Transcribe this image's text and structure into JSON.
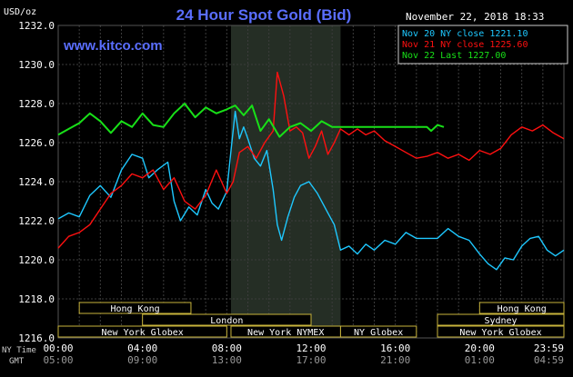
{
  "header": {
    "title": "24 Hour Spot Gold (Bid)",
    "units": "USD/oz",
    "date": "November 22, 2018 18:33",
    "watermark": "www.kitco.com"
  },
  "legend": [
    {
      "label": "Nov 20 NY close 1221.10",
      "color": "#1ec8ff"
    },
    {
      "label": "Nov 21 NY close 1225.60",
      "color": "#ff1010"
    },
    {
      "label": "Nov 22 Last 1227.00",
      "color": "#18e018"
    }
  ],
  "axis": {
    "row1_label": "NY Time",
    "row2_label": "GMT",
    "x_ticks_ny": [
      "00:00",
      "04:00",
      "08:00",
      "12:00",
      "16:00",
      "20:00",
      "23:59"
    ],
    "x_ticks_gmt": [
      "05:00",
      "09:00",
      "13:00",
      "17:00",
      "21:00",
      "01:00",
      "04:59"
    ],
    "y_ticks": [
      "1232.0",
      "1230.0",
      "1228.0",
      "1226.0",
      "1224.0",
      "1222.0",
      "1220.0",
      "1218.0",
      "1216.0"
    ]
  },
  "sessions": [
    {
      "label": "Hong Kong",
      "start": 1.0,
      "end": 6.3,
      "row": 0
    },
    {
      "label": "Hong Kong",
      "start": 20.0,
      "end": 24.0,
      "row": 0
    },
    {
      "label": "London",
      "start": 4.0,
      "end": 12.0,
      "row": 1
    },
    {
      "label": "Sydney",
      "start": 18.0,
      "end": 24.0,
      "row": 1
    },
    {
      "label": "New York Globex",
      "start": 0.0,
      "end": 8.0,
      "row": 2
    },
    {
      "label": "New York NYMEX",
      "start": 8.2,
      "end": 13.4,
      "row": 2
    },
    {
      "label": "NY Globex",
      "start": 13.4,
      "end": 17.0,
      "row": 2
    },
    {
      "label": "New York Globex",
      "start": 18.0,
      "end": 24.0,
      "row": 2
    }
  ],
  "chart_data": {
    "type": "line",
    "title": "24 Hour Spot Gold (Bid)",
    "ylabel": "USD/oz",
    "xlabel": "NY Time",
    "ylim": [
      1216,
      1232
    ],
    "xlim": [
      0,
      24
    ],
    "grid": true,
    "shaded_range": [
      8.2,
      13.4
    ],
    "series": [
      {
        "name": "Nov 20 NY close 1221.10",
        "color": "#1ec8ff",
        "points": [
          [
            0,
            1222.1
          ],
          [
            0.5,
            1222.4
          ],
          [
            1,
            1222.2
          ],
          [
            1.5,
            1223.3
          ],
          [
            2,
            1223.8
          ],
          [
            2.5,
            1223.2
          ],
          [
            3,
            1224.6
          ],
          [
            3.5,
            1225.4
          ],
          [
            4,
            1225.2
          ],
          [
            4.3,
            1224.2
          ],
          [
            4.7,
            1224.6
          ],
          [
            5.2,
            1225.0
          ],
          [
            5.5,
            1223.0
          ],
          [
            5.8,
            1222.0
          ],
          [
            6.2,
            1222.7
          ],
          [
            6.6,
            1222.3
          ],
          [
            7.0,
            1223.6
          ],
          [
            7.3,
            1222.9
          ],
          [
            7.6,
            1222.6
          ],
          [
            8.0,
            1223.5
          ],
          [
            8.2,
            1225.6
          ],
          [
            8.4,
            1227.6
          ],
          [
            8.6,
            1226.2
          ],
          [
            8.8,
            1226.8
          ],
          [
            9.0,
            1226.2
          ],
          [
            9.3,
            1225.2
          ],
          [
            9.6,
            1224.8
          ],
          [
            9.9,
            1225.6
          ],
          [
            10.2,
            1223.6
          ],
          [
            10.4,
            1221.8
          ],
          [
            10.6,
            1221.0
          ],
          [
            10.9,
            1222.2
          ],
          [
            11.2,
            1223.2
          ],
          [
            11.5,
            1223.8
          ],
          [
            11.9,
            1224.0
          ],
          [
            12.3,
            1223.4
          ],
          [
            12.8,
            1222.4
          ],
          [
            13.1,
            1221.8
          ],
          [
            13.4,
            1220.5
          ],
          [
            13.8,
            1220.7
          ],
          [
            14.2,
            1220.3
          ],
          [
            14.6,
            1220.8
          ],
          [
            15.0,
            1220.5
          ],
          [
            15.5,
            1221.0
          ],
          [
            16.0,
            1220.8
          ],
          [
            16.5,
            1221.4
          ],
          [
            17.0,
            1221.1
          ],
          [
            17.5,
            1221.1
          ],
          [
            18.0,
            1221.1
          ],
          [
            18.5,
            1221.6
          ],
          [
            19.0,
            1221.2
          ],
          [
            19.5,
            1221.0
          ],
          [
            20.0,
            1220.3
          ],
          [
            20.4,
            1219.8
          ],
          [
            20.8,
            1219.5
          ],
          [
            21.2,
            1220.1
          ],
          [
            21.6,
            1220.0
          ],
          [
            22.0,
            1220.7
          ],
          [
            22.4,
            1221.1
          ],
          [
            22.8,
            1221.2
          ],
          [
            23.2,
            1220.5
          ],
          [
            23.6,
            1220.2
          ],
          [
            24.0,
            1220.5
          ]
        ]
      },
      {
        "name": "Nov 21 NY close 1225.60",
        "color": "#ff1010",
        "points": [
          [
            0,
            1220.6
          ],
          [
            0.5,
            1221.2
          ],
          [
            1,
            1221.4
          ],
          [
            1.5,
            1221.8
          ],
          [
            2,
            1222.6
          ],
          [
            2.5,
            1223.4
          ],
          [
            3,
            1223.8
          ],
          [
            3.5,
            1224.4
          ],
          [
            4,
            1224.2
          ],
          [
            4.5,
            1224.6
          ],
          [
            5.0,
            1223.6
          ],
          [
            5.5,
            1224.2
          ],
          [
            6.0,
            1223.0
          ],
          [
            6.5,
            1222.6
          ],
          [
            7.0,
            1223.3
          ],
          [
            7.5,
            1224.6
          ],
          [
            8.0,
            1223.4
          ],
          [
            8.3,
            1224.0
          ],
          [
            8.6,
            1225.5
          ],
          [
            9.0,
            1225.8
          ],
          [
            9.4,
            1225.2
          ],
          [
            9.8,
            1226.0
          ],
          [
            10.2,
            1226.6
          ],
          [
            10.4,
            1229.6
          ],
          [
            10.7,
            1228.4
          ],
          [
            11.0,
            1226.6
          ],
          [
            11.3,
            1226.8
          ],
          [
            11.6,
            1226.5
          ],
          [
            11.9,
            1225.2
          ],
          [
            12.2,
            1225.8
          ],
          [
            12.5,
            1226.6
          ],
          [
            12.8,
            1225.4
          ],
          [
            13.1,
            1226.0
          ],
          [
            13.4,
            1226.7
          ],
          [
            13.8,
            1226.4
          ],
          [
            14.2,
            1226.7
          ],
          [
            14.6,
            1226.4
          ],
          [
            15.0,
            1226.6
          ],
          [
            15.5,
            1226.1
          ],
          [
            16.0,
            1225.8
          ],
          [
            16.5,
            1225.5
          ],
          [
            17.0,
            1225.2
          ],
          [
            17.5,
            1225.3
          ],
          [
            18.0,
            1225.5
          ],
          [
            18.5,
            1225.2
          ],
          [
            19.0,
            1225.4
          ],
          [
            19.5,
            1225.1
          ],
          [
            20.0,
            1225.6
          ],
          [
            20.5,
            1225.4
          ],
          [
            21.0,
            1225.7
          ],
          [
            21.5,
            1226.4
          ],
          [
            22.0,
            1226.8
          ],
          [
            22.5,
            1226.6
          ],
          [
            23.0,
            1226.9
          ],
          [
            23.5,
            1226.5
          ],
          [
            24.0,
            1226.2
          ]
        ]
      },
      {
        "name": "Nov 22 Last 1227.00",
        "color": "#18e018",
        "points": [
          [
            0,
            1226.4
          ],
          [
            0.5,
            1226.7
          ],
          [
            1,
            1227.0
          ],
          [
            1.5,
            1227.5
          ],
          [
            2,
            1227.1
          ],
          [
            2.5,
            1226.5
          ],
          [
            3.0,
            1227.1
          ],
          [
            3.5,
            1226.8
          ],
          [
            4.0,
            1227.5
          ],
          [
            4.5,
            1226.9
          ],
          [
            5.0,
            1226.8
          ],
          [
            5.5,
            1227.5
          ],
          [
            6.0,
            1228.0
          ],
          [
            6.5,
            1227.3
          ],
          [
            7.0,
            1227.8
          ],
          [
            7.5,
            1227.5
          ],
          [
            8.0,
            1227.7
          ],
          [
            8.4,
            1227.9
          ],
          [
            8.8,
            1227.4
          ],
          [
            9.2,
            1227.9
          ],
          [
            9.6,
            1226.6
          ],
          [
            10.0,
            1227.2
          ],
          [
            10.5,
            1226.3
          ],
          [
            11.0,
            1226.8
          ],
          [
            11.5,
            1227.0
          ],
          [
            12.0,
            1226.6
          ],
          [
            12.5,
            1227.1
          ],
          [
            13.0,
            1226.8
          ],
          [
            13.5,
            1226.8
          ],
          [
            14.0,
            1226.8
          ],
          [
            15.0,
            1226.8
          ],
          [
            16.0,
            1226.8
          ],
          [
            17.0,
            1226.8
          ],
          [
            17.5,
            1226.8
          ],
          [
            17.7,
            1226.6
          ],
          [
            18.0,
            1226.9
          ],
          [
            18.3,
            1226.8
          ]
        ]
      }
    ]
  }
}
